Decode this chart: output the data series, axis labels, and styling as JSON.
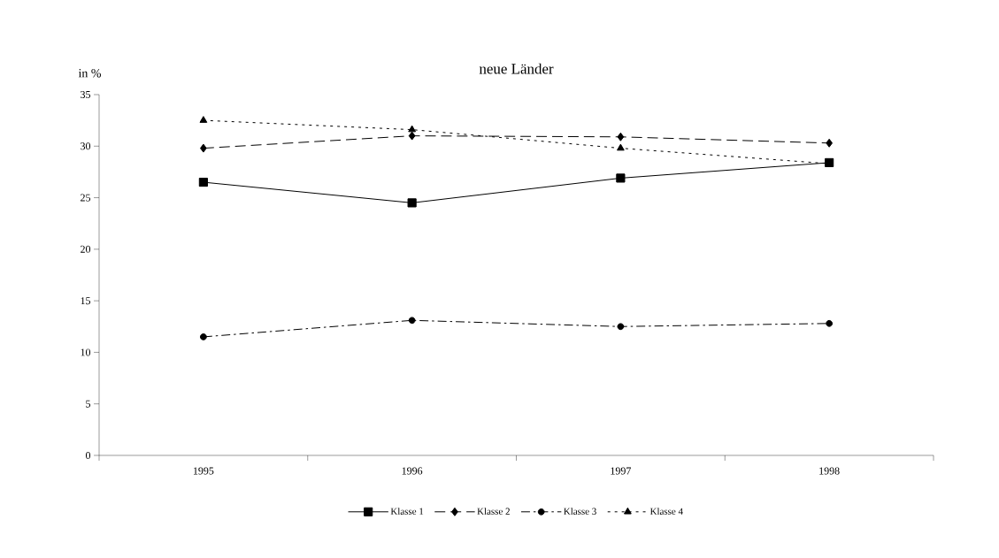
{
  "chart_data": {
    "type": "line",
    "title": "neue Länder",
    "ylabel": "in %",
    "categories": [
      "1995",
      "1996",
      "1997",
      "1998"
    ],
    "series": [
      {
        "name": "Klasse 1",
        "color": "#000000",
        "marker": "square",
        "line_style": "solid",
        "values": [
          26.5,
          24.5,
          26.9,
          28.4
        ]
      },
      {
        "name": "Klasse 2",
        "color": "#000000",
        "marker": "diamond",
        "line_style": "dashed",
        "values": [
          29.8,
          31.0,
          30.9,
          30.3
        ]
      },
      {
        "name": "Klasse 3",
        "color": "#000000",
        "marker": "circle",
        "line_style": "dashdot",
        "values": [
          11.5,
          13.1,
          12.5,
          12.8
        ]
      },
      {
        "name": "Klasse 4",
        "color": "#000000",
        "marker": "triangle",
        "line_style": "dotted",
        "values": [
          32.5,
          31.6,
          29.8,
          28.3
        ]
      }
    ],
    "ylim": [
      0,
      35
    ],
    "yticks": [
      0,
      5,
      10,
      15,
      20,
      25,
      30,
      35
    ],
    "grid": false,
    "legend": "bottom"
  }
}
